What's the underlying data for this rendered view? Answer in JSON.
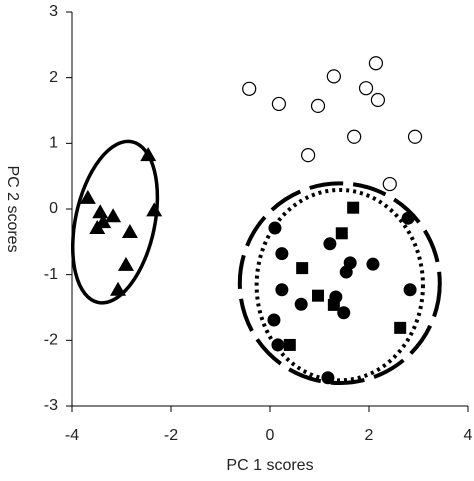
{
  "chart_data": {
    "type": "scatter",
    "xlabel": "PC 1 scores",
    "ylabel": "PC 2 scores",
    "xlim": [
      -4,
      4
    ],
    "xticks": [
      -4,
      -2,
      0,
      2,
      4
    ],
    "ylim": [
      -3,
      3
    ],
    "yticks": [
      -3,
      -2,
      -1,
      0,
      1,
      2,
      3
    ],
    "series": [
      {
        "marker": "triangle",
        "color": "#000000",
        "x": [
          -2.46,
          -3.68,
          -3.43,
          -3.17,
          -3.37,
          -3.49,
          -2.34,
          -2.83,
          -2.91,
          -3.07
        ],
        "y": [
          0.82,
          0.17,
          -0.05,
          -0.11,
          -0.2,
          -0.29,
          -0.02,
          -0.35,
          -0.85,
          -1.23
        ]
      },
      {
        "marker": "open-circle",
        "color": "#000000",
        "x": [
          -0.42,
          0.18,
          0.97,
          1.29,
          2.14,
          1.94,
          2.18,
          1.7,
          0.77,
          2.93,
          2.42
        ],
        "y": [
          1.83,
          1.6,
          1.57,
          2.02,
          2.22,
          1.84,
          1.66,
          1.1,
          0.82,
          1.1,
          0.38
        ]
      },
      {
        "marker": "circle",
        "color": "#000000",
        "x": [
          0.1,
          2.79,
          0.24,
          1.21,
          1.62,
          1.54,
          2.08,
          0.24,
          0.63,
          1.33,
          2.83,
          1.49,
          0.08,
          0.16,
          1.17
        ],
        "y": [
          -0.29,
          -0.14,
          -0.68,
          -0.53,
          -0.82,
          -0.96,
          -0.84,
          -1.23,
          -1.45,
          -1.34,
          -1.23,
          -1.58,
          -1.69,
          -2.07,
          -2.57
        ]
      },
      {
        "marker": "square",
        "color": "#000000",
        "x": [
          1.68,
          1.45,
          0.65,
          0.97,
          1.29,
          0.4,
          2.63
        ],
        "y": [
          0.02,
          -0.37,
          -0.9,
          -1.32,
          -1.46,
          -2.07,
          -1.81
        ]
      }
    ],
    "ellipses": [
      {
        "cx": -3.13,
        "cy": -0.2,
        "rx": 0.8,
        "ry": 1.25,
        "rotation": 12,
        "dash": "solid"
      },
      {
        "cx": 1.41,
        "cy": -1.13,
        "rx": 2.02,
        "ry": 1.52,
        "rotation": 0,
        "dash": "dashed"
      },
      {
        "cx": 1.41,
        "cy": -1.16,
        "rx": 1.68,
        "ry": 1.45,
        "rotation": 0,
        "dash": "dotted"
      }
    ]
  }
}
